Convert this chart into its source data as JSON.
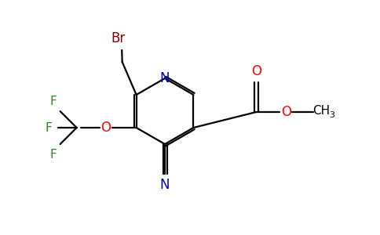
{
  "bg_color": "#ffffff",
  "atom_colors": {
    "Br": "#8b0000",
    "N": "#0000cd",
    "O": "#ff0000",
    "F": "#228b22",
    "C": "#000000",
    "H": "#000000"
  },
  "figsize": [
    4.84,
    3.0
  ],
  "dpi": 100
}
